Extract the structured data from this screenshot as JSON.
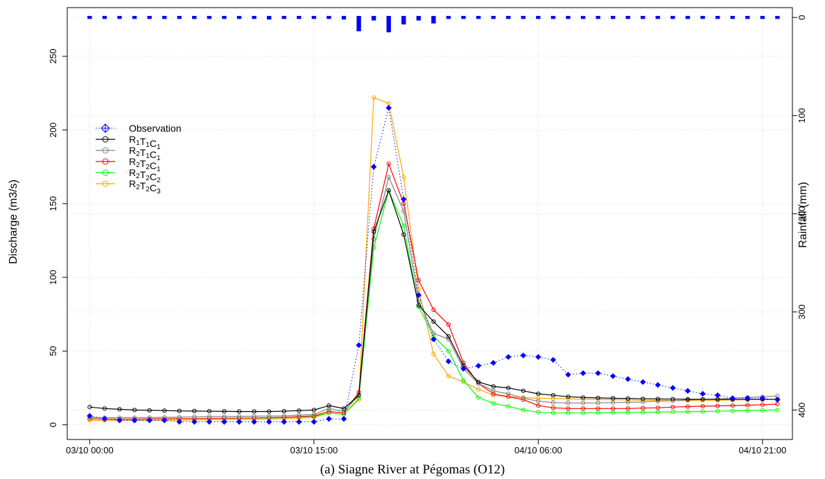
{
  "chart_data": {
    "type": "line",
    "caption": "(a) Siagne River at Pégomas (O12)",
    "ylabel": "Discharge (m3/s)",
    "y2label": "Rainfall (mm)",
    "x_tick_labels": [
      "03/10 00:00",
      "03/10 15:00",
      "04/10 06:00",
      "04/10 21:00"
    ],
    "x_tick_hours": [
      0,
      15,
      30,
      45
    ],
    "xlim_hours": [
      -1.5,
      47
    ],
    "ylim": [
      -10,
      283
    ],
    "y_ticks": [
      0,
      50,
      100,
      150,
      200,
      250
    ],
    "y2lim_reversed": [
      -10,
      430
    ],
    "y2_ticks": [
      0,
      100,
      200,
      300,
      400
    ],
    "grid": true,
    "legend_position": "top-left",
    "colors": {
      "observation": "#0000ff",
      "R1T1C1": "#000000",
      "R2T1C1": "#808080",
      "R2T2C1": "#ff0000",
      "R2T2C2": "#00ff00",
      "R2T2C3": "#ffa500"
    },
    "x_hours": [
      0,
      1,
      2,
      3,
      4,
      5,
      6,
      7,
      8,
      9,
      10,
      11,
      12,
      13,
      14,
      15,
      16,
      17,
      18,
      19,
      20,
      21,
      22,
      23,
      24,
      25,
      26,
      27,
      28,
      29,
      30,
      31,
      32,
      33,
      34,
      35,
      36,
      37,
      38,
      39,
      40,
      41,
      42,
      43,
      44,
      45,
      46
    ],
    "series": [
      {
        "key": "observation",
        "legend": [
          [
            "Observation",
            ""
          ]
        ],
        "style": "dotted-diamond",
        "values": [
          6,
          4,
          3,
          3,
          3,
          3,
          2,
          2,
          2,
          2,
          2,
          2,
          2,
          2,
          2,
          2,
          4,
          4,
          54,
          175,
          215,
          153,
          88,
          58,
          43,
          38,
          40,
          42,
          46,
          47,
          46,
          44,
          34,
          35,
          35,
          33,
          31,
          29,
          27,
          25,
          23,
          21,
          20,
          18,
          18,
          18,
          17
        ]
      },
      {
        "key": "R1T1C1",
        "legend": [
          [
            "R",
            "1"
          ],
          [
            "T",
            "1"
          ],
          [
            "C",
            "1"
          ]
        ],
        "style": "line-circle",
        "values": [
          12,
          11,
          10.5,
          10,
          9.8,
          9.6,
          9.4,
          9.3,
          9.2,
          9.1,
          9,
          9,
          9,
          9.2,
          9.6,
          10,
          13,
          11,
          20,
          131,
          159,
          129,
          81,
          70,
          60,
          40,
          29,
          26,
          25,
          23,
          21,
          20,
          19,
          18.5,
          18.2,
          18,
          17.8,
          17.6,
          17.5,
          17.4,
          17.3,
          17.3,
          17.2,
          17.2,
          17.2,
          17.2,
          17.2
        ]
      },
      {
        "key": "R2T1C1",
        "legend": [
          [
            "R",
            "2"
          ],
          [
            "T",
            "1"
          ],
          [
            "C",
            "1"
          ]
        ],
        "style": "line-circle",
        "values": [
          5,
          4.8,
          4.8,
          4.8,
          4.9,
          5,
          5.2,
          5.4,
          5.5,
          5.6,
          5.7,
          5.8,
          5.9,
          6,
          6.5,
          7,
          11,
          9,
          20,
          126,
          168,
          145,
          84,
          62,
          58,
          38,
          28,
          23,
          21,
          18,
          16,
          15,
          14.8,
          14.8,
          14.8,
          15,
          15.2,
          15.5,
          16,
          16.3,
          16.8,
          17.2,
          17.5,
          18,
          18.5,
          19,
          19.5
        ]
      },
      {
        "key": "R2T2C1",
        "legend": [
          [
            "R",
            "2"
          ],
          [
            "T",
            "2"
          ],
          [
            "C",
            "1"
          ]
        ],
        "style": "line-circle",
        "values": [
          4,
          3.8,
          3.8,
          3.8,
          3.9,
          4,
          4.1,
          4.2,
          4.3,
          4.4,
          4.5,
          4.6,
          4.8,
          5,
          5.5,
          6,
          9,
          8,
          22,
          133,
          177,
          150,
          98,
          78,
          68,
          42,
          28,
          21,
          19,
          17,
          13,
          11.5,
          11,
          11,
          11,
          11,
          11,
          11.3,
          11.5,
          12,
          12.3,
          12.6,
          12.8,
          13,
          13.3,
          13.6,
          14
        ]
      },
      {
        "key": "R2T2C2",
        "legend": [
          [
            "R",
            "2"
          ],
          [
            "T",
            "2"
          ],
          [
            "C",
            "2"
          ]
        ],
        "style": "line-circle",
        "values": [
          4,
          3.8,
          3.7,
          3.7,
          3.8,
          3.9,
          4,
          4.1,
          4.2,
          4.3,
          4.4,
          4.5,
          4.6,
          4.8,
          5.2,
          5.6,
          8,
          7,
          18,
          120,
          159,
          135,
          80,
          60,
          50,
          30,
          18.5,
          14.5,
          12.5,
          10,
          8.5,
          8,
          8,
          8,
          8.2,
          8.3,
          8.4,
          8.5,
          8.6,
          8.7,
          8.8,
          9,
          9.2,
          9.4,
          9.6,
          9.8,
          10
        ]
      },
      {
        "key": "R2T2C3",
        "legend": [
          [
            "R",
            "2"
          ],
          [
            "T",
            "2"
          ],
          [
            "C",
            "3"
          ]
        ],
        "style": "line-circle",
        "values": [
          3,
          2.8,
          2.8,
          2.8,
          2.9,
          3,
          3.1,
          3.2,
          3.3,
          3.4,
          3.5,
          3.6,
          3.8,
          4,
          4.5,
          5,
          8,
          7,
          17,
          222,
          218,
          168,
          92,
          48,
          33,
          29,
          24,
          20,
          19,
          18.5,
          18,
          17.8,
          17.5,
          17.3,
          17.2,
          17,
          16.8,
          16.6,
          16.5,
          16.4,
          16.4,
          16.5,
          16.6,
          16.8,
          17,
          17.2,
          17.4
        ]
      }
    ],
    "rainfall": {
      "x_hours": [
        0,
        1,
        2,
        3,
        4,
        5,
        6,
        7,
        8,
        9,
        10,
        11,
        12,
        13,
        14,
        15,
        16,
        17,
        18,
        19,
        20,
        21,
        22,
        23,
        24,
        25,
        26,
        27,
        28,
        29,
        30,
        31,
        32,
        33,
        34,
        35,
        36,
        37,
        38,
        39,
        40,
        41,
        42,
        43,
        44,
        45,
        46
      ],
      "values_mm": [
        1,
        1,
        1,
        1,
        1,
        1,
        1,
        1,
        1,
        1,
        1,
        1,
        2,
        1,
        1,
        1,
        1,
        2,
        14,
        3,
        15,
        7,
        3,
        6,
        1,
        1,
        1,
        1,
        1,
        1,
        1,
        1,
        1,
        1,
        1,
        1,
        1,
        1,
        1,
        1,
        1,
        1,
        1,
        1,
        1,
        1,
        1
      ]
    }
  }
}
